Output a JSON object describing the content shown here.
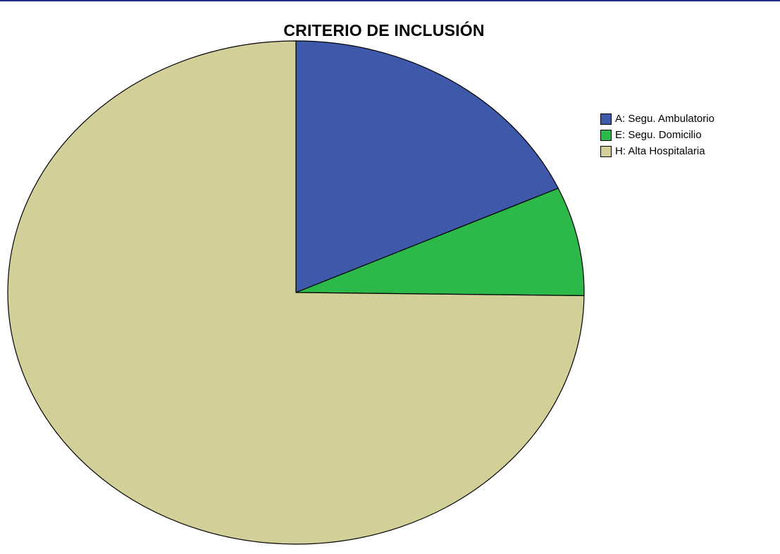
{
  "chart_data": {
    "type": "pie",
    "title": "CRITERIO DE INCLUSIÓN",
    "categories": [
      "A: Segu. Ambulatorio",
      "E: Segu. Domicilio",
      "H: Alta Hospitalaria"
    ],
    "values": [
      18.2,
      7.0,
      74.8
    ],
    "colors": [
      "#3e58aa",
      "#2db84a",
      "#d3cf98"
    ],
    "start_angle_deg": 0,
    "direction": "clockwise",
    "legend_position": "top-right"
  }
}
